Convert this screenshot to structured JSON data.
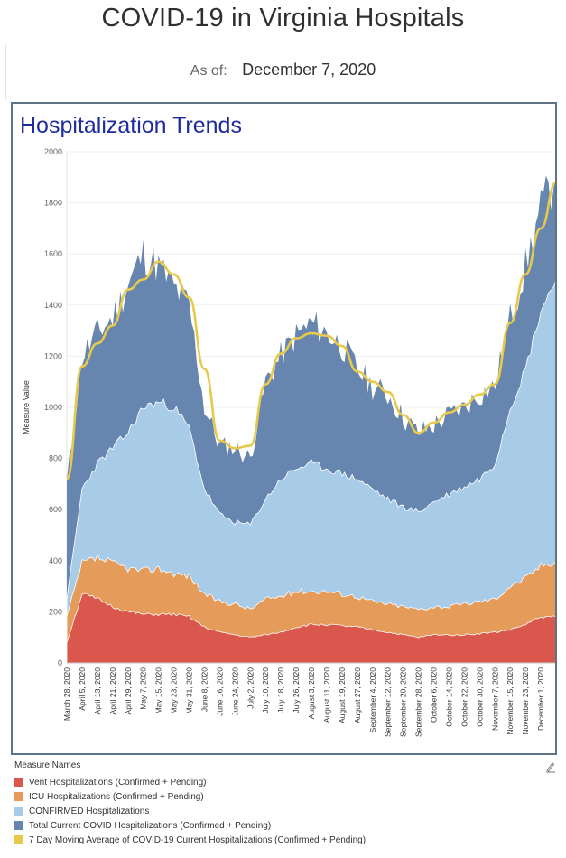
{
  "page": {
    "title": "COVID-19 in Virginia Hospitals",
    "as_of_label": "As of:",
    "as_of_date": "December 7, 2020"
  },
  "panel": {
    "title": "Hospitalization Trends"
  },
  "legend": {
    "title": "Measure Names",
    "items": [
      {
        "label": "Vent Hospitalizations (Confirmed + Pending)",
        "color": "#d9574c"
      },
      {
        "label": "ICU Hospitalizations (Confirmed + Pending)",
        "color": "#e59c5b"
      },
      {
        "label": "CONFIRMED Hospitalizations",
        "color": "#a8cbe7"
      },
      {
        "label": "Total Current COVID Hospitalizations (Confirmed + Pending)",
        "color": "#6686b0"
      },
      {
        "label": "7 Day Moving Average of COVID-19 Current Hospitalizations (Confirmed + Pending)",
        "color": "#e8c94a"
      }
    ]
  },
  "icons": {
    "edit": "pencil-icon"
  },
  "chart_data": {
    "type": "area",
    "title": "Hospitalization Trends",
    "ylabel": "Measure Value",
    "xlabel": "",
    "ylim": [
      0,
      2000
    ],
    "yticks": [
      0,
      200,
      400,
      600,
      800,
      1000,
      1200,
      1400,
      1600,
      1800,
      2000
    ],
    "grid": true,
    "legend_position": "bottom",
    "x": [
      "March 28, 2020",
      "April 5, 2020",
      "April 13, 2020",
      "April 21, 2020",
      "April 29, 2020",
      "May 7, 2020",
      "May 15, 2020",
      "May 23, 2020",
      "May 31, 2020",
      "June 8, 2020",
      "June 16, 2020",
      "June 24, 2020",
      "July 2, 2020",
      "July 10, 2020",
      "July 18, 2020",
      "July 26, 2020",
      "August 3, 2020",
      "August 11, 2020",
      "August 19, 2020",
      "August 27, 2020",
      "September 4, 2020",
      "September 12, 2020",
      "September 20, 2020",
      "September 28, 2020",
      "October 6, 2020",
      "October 14, 2020",
      "October 22, 2020",
      "October 30, 2020",
      "November 7, 2020",
      "November 15, 2020",
      "November 23, 2020",
      "December 1, 2020",
      "December 7, 2020"
    ],
    "xtick_labels": [
      "March 28, 2020",
      "April 5, 2020",
      "April 13, 2020",
      "April 21, 2020",
      "April 29, 2020",
      "May 7, 2020",
      "May 15, 2020",
      "May 23, 2020",
      "May 31, 2020",
      "June 8, 2020",
      "June 16, 2020",
      "June 24, 2020",
      "July 2, 2020",
      "July 10, 2020",
      "July 18, 2020",
      "July 26, 2020",
      "August 3, 2020",
      "August 11, 2020",
      "August 19, 2020",
      "August 27, 2020",
      "September 4, 2020",
      "September 12, 2020",
      "September 20, 2020",
      "September 28, 2020",
      "October 6, 2020",
      "October 14, 2020",
      "October 22, 2020",
      "October 30, 2020",
      "November 7, 2020",
      "November 15, 2020",
      "November 23, 2020",
      "December 1, 2020"
    ],
    "series": [
      {
        "name": "Total Current COVID Hospitalizations (Confirmed + Pending)",
        "color": "#6686b0",
        "values": [
          700,
          1200,
          1290,
          1350,
          1480,
          1600,
          1550,
          1470,
          1400,
          1000,
          850,
          840,
          800,
          1100,
          1200,
          1280,
          1330,
          1290,
          1240,
          1150,
          1080,
          1050,
          960,
          900,
          930,
          970,
          1000,
          1050,
          1080,
          1350,
          1550,
          1780,
          1900
        ]
      },
      {
        "name": "CONFIRMED Hospitalizations",
        "color": "#a8cbe7",
        "values": [
          250,
          680,
          780,
          840,
          900,
          1000,
          1020,
          1000,
          920,
          680,
          580,
          550,
          540,
          640,
          720,
          760,
          780,
          760,
          740,
          720,
          680,
          640,
          610,
          590,
          630,
          660,
          690,
          720,
          780,
          1000,
          1150,
          1380,
          1500
        ]
      },
      {
        "name": "ICU Hospitalizations (Confirmed + Pending)",
        "color": "#e59c5b",
        "values": [
          180,
          390,
          410,
          390,
          370,
          360,
          370,
          350,
          340,
          270,
          240,
          230,
          210,
          250,
          260,
          280,
          280,
          280,
          270,
          260,
          240,
          230,
          220,
          210,
          220,
          220,
          230,
          240,
          250,
          300,
          330,
          380,
          400
        ]
      },
      {
        "name": "Vent Hospitalizations (Confirmed + Pending)",
        "color": "#d9574c",
        "values": [
          80,
          270,
          250,
          220,
          200,
          190,
          190,
          190,
          180,
          140,
          120,
          110,
          100,
          110,
          120,
          140,
          150,
          150,
          145,
          140,
          130,
          120,
          110,
          100,
          110,
          110,
          110,
          115,
          120,
          130,
          150,
          180,
          180
        ]
      },
      {
        "name": "7 Day Moving Average of COVID-19 Current Hospitalizations (Confirmed + Pending)",
        "color": "#e8c94a",
        "values": [
          720,
          1160,
          1250,
          1320,
          1460,
          1500,
          1570,
          1520,
          1430,
          1150,
          870,
          840,
          850,
          1090,
          1210,
          1270,
          1290,
          1280,
          1240,
          1140,
          1100,
          1060,
          970,
          900,
          940,
          980,
          1010,
          1050,
          1090,
          1330,
          1520,
          1700,
          1880
        ]
      }
    ]
  }
}
